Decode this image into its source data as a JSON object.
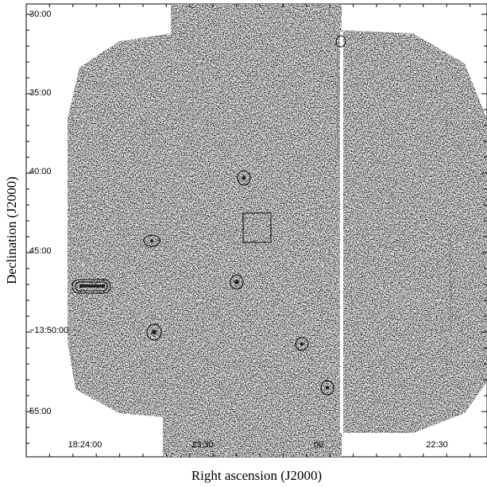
{
  "figure": {
    "x_label": "Right ascension (J2000)",
    "y_label": "Declination (J2000)",
    "x_tick_labels": [
      "18:24:00",
      "23:30",
      "00",
      "22:30"
    ],
    "y_tick_labels": [
      "30:00",
      "35:00",
      "40:00",
      "45:00",
      "−13:50:00",
      "55:00"
    ]
  }
}
